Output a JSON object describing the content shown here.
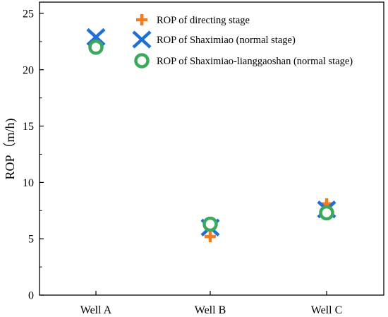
{
  "chart_data": {
    "type": "scatter",
    "categories": [
      "Well A",
      "Well B",
      "Well C"
    ],
    "ylabel": "ROP（m/h)",
    "xlabel": "",
    "ylim": [
      0,
      26
    ],
    "yticks": [
      0,
      5,
      10,
      15,
      20,
      25
    ],
    "grid": false,
    "legend_position": "top-right",
    "series": [
      {
        "name": "ROP of directing stage",
        "marker": "plus",
        "color": "#f47b20",
        "values": [
          22.3,
          5.2,
          8.1
        ]
      },
      {
        "name": "ROP of Shaximiao (normal stage)",
        "marker": "x",
        "color": "#1f6fd6",
        "values": [
          22.9,
          6.0,
          7.6
        ]
      },
      {
        "name": "ROP of Shaximiao-lianggaoshan (normal stage)",
        "marker": "circle",
        "color": "#3aaa5a",
        "values": [
          22.0,
          6.3,
          7.3
        ]
      }
    ]
  }
}
